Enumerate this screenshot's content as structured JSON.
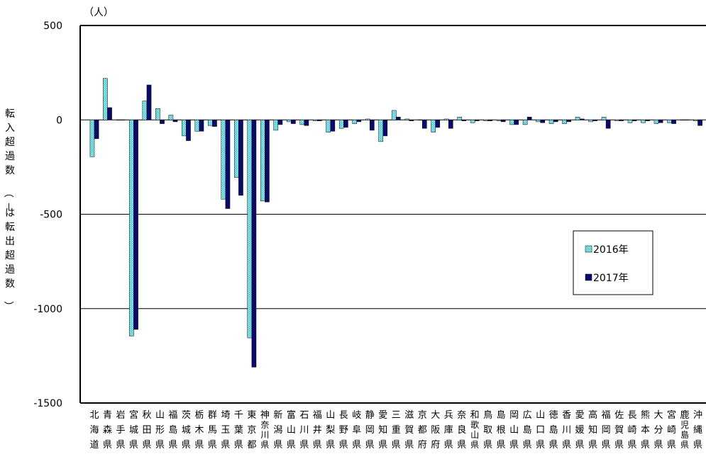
{
  "chart_data": {
    "type": "bar",
    "unit_label": "（人）",
    "ylabel": "転入超過数（－は転出超過数）",
    "ylim": [
      -1500,
      500
    ],
    "yticks": [
      500,
      0,
      -500,
      -1000,
      -1500
    ],
    "grid": true,
    "legend_position": "right",
    "colors": {
      "2016年": "#4fd0d8",
      "2017年": "#0a0a6a"
    },
    "categories": [
      "北海道",
      "青森県",
      "岩手県",
      "宮城県",
      "秋田県",
      "山形県",
      "福島県",
      "茨城県",
      "栃木県",
      "群馬県",
      "埼玉県",
      "千葉県",
      "東京都",
      "神奈川県",
      "新潟県",
      "富山県",
      "石川県",
      "福井県",
      "山梨県",
      "長野県",
      "岐阜県",
      "静岡県",
      "愛知県",
      "三重県",
      "滋賀県",
      "京都府",
      "大阪府",
      "兵庫県",
      "奈良県",
      "和歌山県",
      "鳥取県",
      "島根県",
      "岡山県",
      "広島県",
      "山口県",
      "徳島県",
      "香川県",
      "愛媛県",
      "高知県",
      "福岡県",
      "佐賀県",
      "長崎県",
      "熊本県",
      "大分県",
      "宮崎県",
      "鹿児島県",
      "沖縄県"
    ],
    "series": [
      {
        "name": "2016年",
        "values": [
          -195,
          220,
          0,
          -1145,
          100,
          60,
          25,
          -85,
          -60,
          -30,
          -420,
          -305,
          -1155,
          -430,
          -55,
          -10,
          -25,
          -5,
          -65,
          -45,
          -20,
          5,
          -115,
          50,
          5,
          0,
          -65,
          5,
          15,
          -15,
          -5,
          -5,
          -25,
          -25,
          -10,
          -20,
          -20,
          15,
          -10,
          15,
          -5,
          -15,
          -15,
          -20,
          -15,
          0,
          -5
        ]
      },
      {
        "name": "2017年",
        "values": [
          -100,
          65,
          0,
          -1110,
          185,
          -20,
          -10,
          -110,
          -60,
          -35,
          -470,
          -400,
          -1310,
          -435,
          -25,
          -20,
          -30,
          -5,
          -60,
          -40,
          -10,
          -55,
          -85,
          15,
          -5,
          -45,
          -40,
          -45,
          -5,
          -5,
          -5,
          -10,
          -25,
          15,
          -15,
          -10,
          -10,
          5,
          -5,
          -45,
          -5,
          -5,
          -5,
          -15,
          -20,
          0,
          -30
        ]
      }
    ]
  }
}
